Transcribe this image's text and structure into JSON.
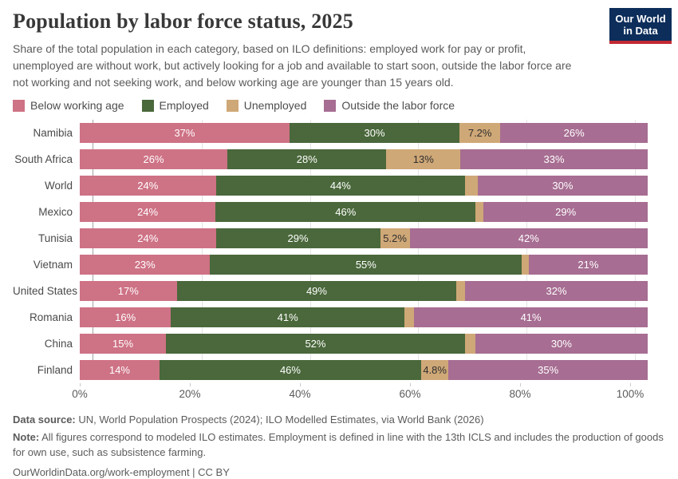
{
  "header": {
    "title": "Population by labor force status, 2025",
    "subtitle": "Share of the total population in each category, based on ILO definitions: employed work for pay or profit, unemployed are without work, but actively looking for a job and available to start soon, outside the labor force are not working and not seeking work, and below working age are younger than 15 years old.",
    "logo": {
      "line1": "Our World",
      "line2": "in Data",
      "bg_color": "#0d2e5b",
      "stripe_color": "#c32a33"
    }
  },
  "legend": [
    {
      "label": "Below working age",
      "color": "#ce7285"
    },
    {
      "label": "Employed",
      "color": "#4a683b"
    },
    {
      "label": "Unemployed",
      "color": "#cfa877"
    },
    {
      "label": "Outside the labor force",
      "color": "#a76d92"
    }
  ],
  "chart_data": {
    "type": "bar",
    "stacked": true,
    "orientation": "horizontal",
    "title": "Population by labor force status, 2025",
    "categories": [
      "Namibia",
      "South Africa",
      "World",
      "Mexico",
      "Tunisia",
      "Vietnam",
      "United States",
      "Romania",
      "China",
      "Finland"
    ],
    "series": [
      {
        "name": "Below working age",
        "color": "#ce7285",
        "label_color": "#ffffff",
        "values": [
          37,
          26,
          24,
          24,
          24,
          23,
          17,
          16,
          15,
          14
        ],
        "labels": [
          "37%",
          "26%",
          "24%",
          "24%",
          "24%",
          "23%",
          "17%",
          "16%",
          "15%",
          "14%"
        ]
      },
      {
        "name": "Employed",
        "color": "#4a683b",
        "label_color": "#ffffff",
        "values": [
          30,
          28,
          44,
          46,
          29,
          55,
          49,
          41,
          52,
          46
        ],
        "labels": [
          "30%",
          "28%",
          "44%",
          "46%",
          "29%",
          "55%",
          "49%",
          "41%",
          "52%",
          "46%"
        ]
      },
      {
        "name": "Unemployed",
        "color": "#cfa877",
        "label_color": "#2f2f2f",
        "values": [
          7.2,
          13,
          2.2,
          1.4,
          5.2,
          1.2,
          1.5,
          1.7,
          1.8,
          4.8
        ],
        "labels": [
          "7.2%",
          "13%",
          "",
          "",
          "5.2%",
          "",
          "",
          "",
          "",
          "4.8%"
        ]
      },
      {
        "name": "Outside the labor force",
        "color": "#a76d92",
        "label_color": "#ffffff",
        "values": [
          26,
          33,
          30,
          29,
          42,
          21,
          32,
          41,
          30,
          35
        ],
        "labels": [
          "26%",
          "33%",
          "30%",
          "29%",
          "42%",
          "21%",
          "32%",
          "41%",
          "30%",
          "35%"
        ]
      }
    ],
    "xlabel": "",
    "ylabel": "",
    "xlim": [
      0,
      100
    ],
    "x_ticks": [
      {
        "value": 0,
        "label": "0%"
      },
      {
        "value": 20,
        "label": "20%"
      },
      {
        "value": 40,
        "label": "40%"
      },
      {
        "value": 60,
        "label": "60%"
      },
      {
        "value": 80,
        "label": "80%"
      },
      {
        "value": 100,
        "label": "100%"
      }
    ],
    "grid": true,
    "legend_position": "top"
  },
  "footer": {
    "datasource_label": "Data source:",
    "datasource_text": " UN, World Population Prospects (2024); ILO Modelled Estimates, via World Bank (2026)",
    "note_label": "Note:",
    "note_text": " All figures correspond to modeled ILO estimates. Employment is defined in line with the 13th ICLS and includes the production of goods for own use, such as subsistence farming.",
    "url": "OurWorldinData.org/work-employment",
    "separator": " | ",
    "license": "CC BY"
  }
}
